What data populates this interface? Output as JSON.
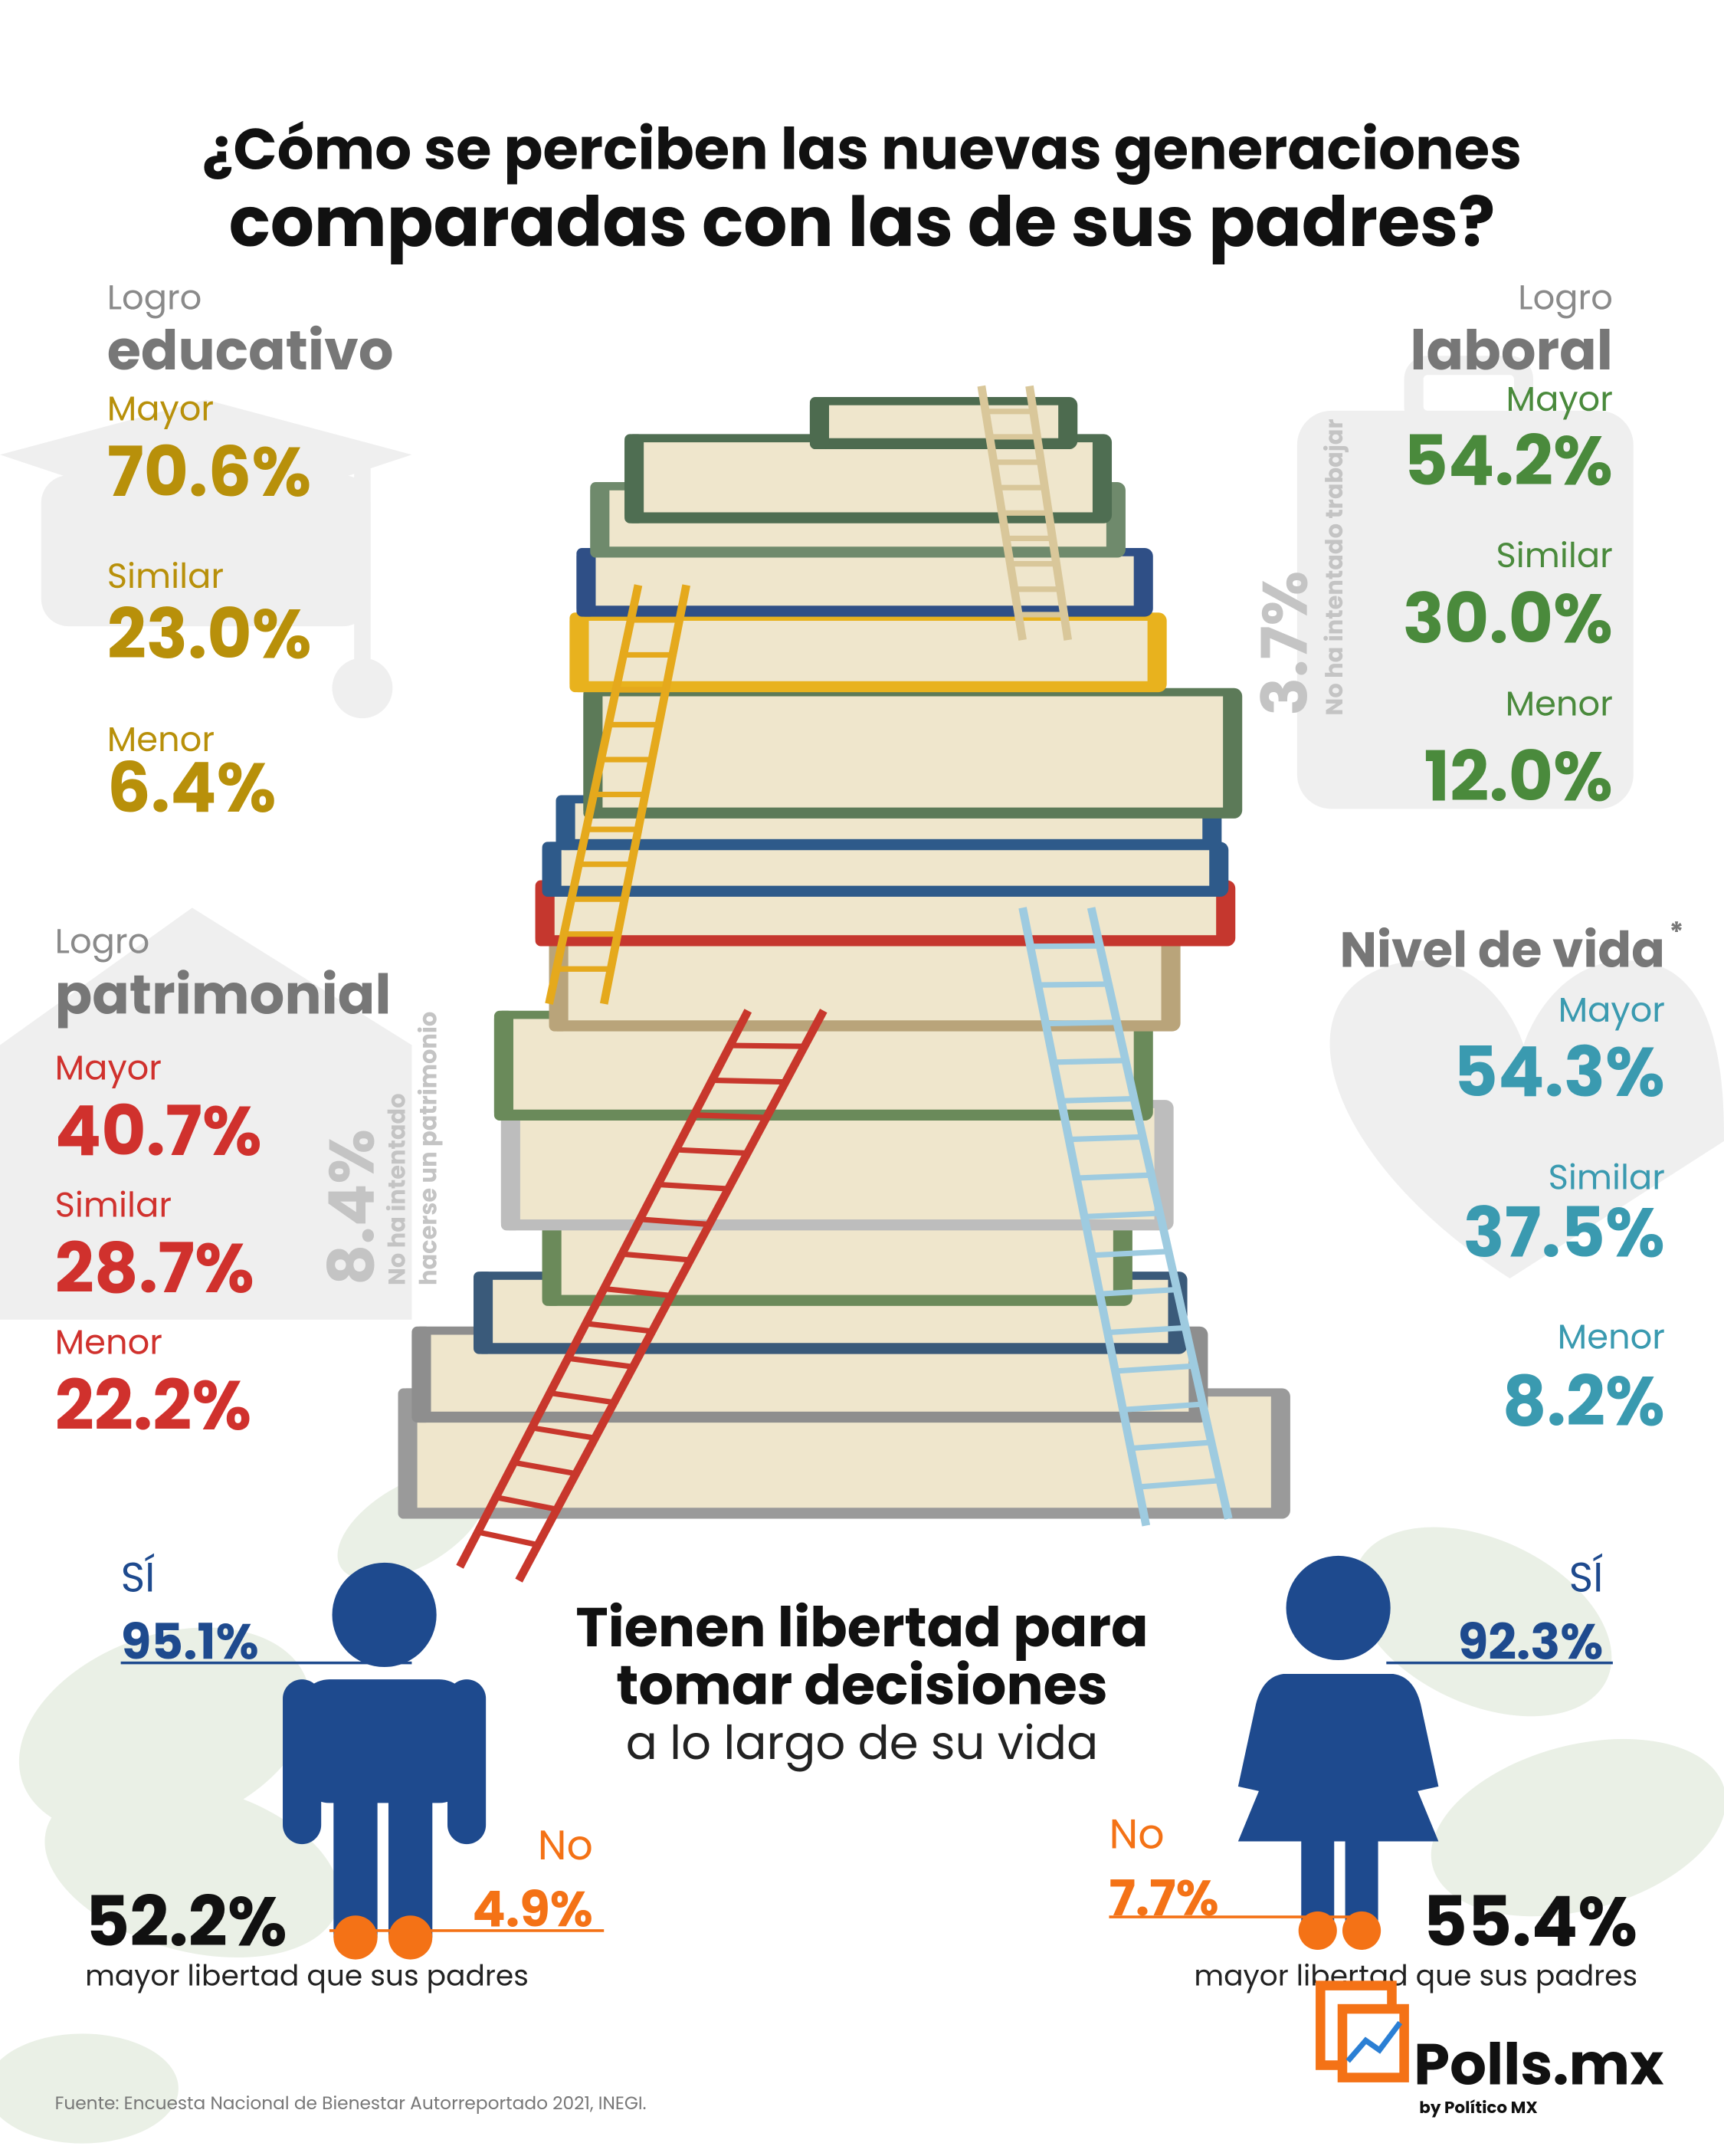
{
  "title": {
    "line1": "¿Cómo se perciben las nuevas generaciones",
    "line2": "comparadas con las de sus padres?"
  },
  "educativo": {
    "label": "Logro",
    "name": "educativo",
    "items": [
      {
        "label": "Mayor",
        "value": "70.6%"
      },
      {
        "label": "Similar",
        "value": "23.0%"
      },
      {
        "label": "Menor",
        "value": "6.4%"
      }
    ]
  },
  "laboral": {
    "label": "Logro",
    "name": "laboral",
    "items": [
      {
        "label": "Mayor",
        "value": "54.2%"
      },
      {
        "label": "Similar",
        "value": "30.0%"
      },
      {
        "label": "Menor",
        "value": "12.0%"
      }
    ],
    "note_value": "3.7%",
    "note_text": "No ha intentado trabajar"
  },
  "patrimonial": {
    "label": "Logro",
    "name": "patrimonial",
    "items": [
      {
        "label": "Mayor",
        "value": "40.7%"
      },
      {
        "label": "Similar",
        "value": "28.7%"
      },
      {
        "label": "Menor",
        "value": "22.2%"
      }
    ],
    "note_value": "8.4%",
    "note_text": [
      "No ha intentado",
      "hacerse un patrimonio"
    ]
  },
  "nivel_de_vida": {
    "name": "Nivel de vida",
    "asterisk": "*",
    "items": [
      {
        "label": "Mayor",
        "value": "54.3%"
      },
      {
        "label": "Similar",
        "value": "37.5%"
      },
      {
        "label": "Menor",
        "value": "8.2%"
      }
    ]
  },
  "libertad": {
    "title": [
      "Tienen libertad para",
      "tomar decisiones"
    ],
    "subtitle": "a lo largo de su vida"
  },
  "hombres": {
    "yes_label": "SÍ",
    "yes_value": "95.1%",
    "no_label": "No",
    "no_value": "4.9%",
    "more_value": "52.2%",
    "more_text": "mayor libertad que sus padres"
  },
  "mujeres": {
    "yes_label": "SÍ",
    "yes_value": "92.3%",
    "no_label": "No",
    "no_value": "7.7%",
    "more_value": "55.4%",
    "more_text": "mayor libertad que sus padres"
  },
  "source": "Fuente: Encuesta Nacional de Bienestar Autorreportado 2021, INEGI.",
  "logo": {
    "name": "Polls.mx",
    "by": "by Político MX"
  }
}
